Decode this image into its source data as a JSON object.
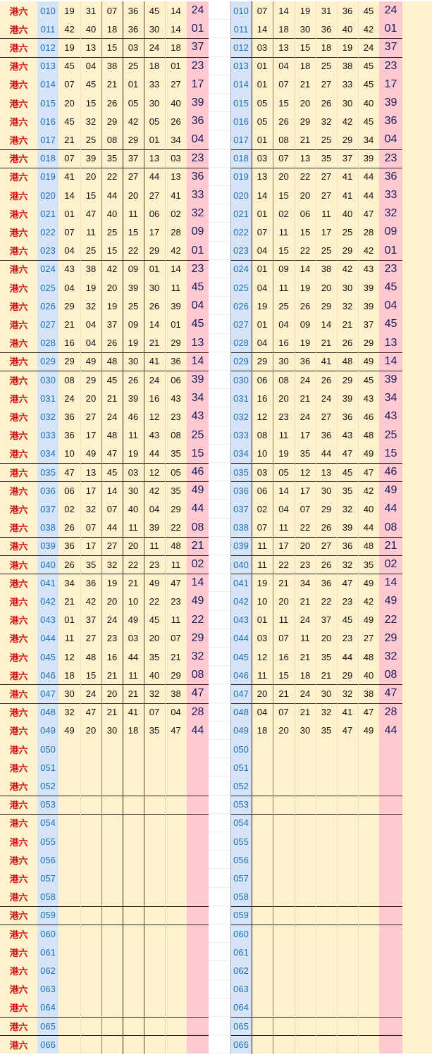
{
  "lottery_label": "港六",
  "colors": {
    "label": "#cc1111",
    "period": "#1e6fb8",
    "period_bg": "#d6e4f7",
    "cell_bg": "#fff2cc",
    "special_bg": "#ffc9d0",
    "special_text": "#1a1a5e"
  },
  "rows": [
    {
      "period": "010",
      "numbers": [
        "19",
        "31",
        "07",
        "36",
        "45",
        "14"
      ],
      "special": "24",
      "sorted": [
        "07",
        "14",
        "19",
        "31",
        "36",
        "45"
      ]
    },
    {
      "period": "011",
      "numbers": [
        "42",
        "40",
        "18",
        "36",
        "30",
        "14"
      ],
      "special": "01",
      "sorted": [
        "14",
        "18",
        "30",
        "36",
        "40",
        "42"
      ]
    },
    {
      "period": "012",
      "numbers": [
        "19",
        "13",
        "15",
        "03",
        "24",
        "18"
      ],
      "special": "37",
      "sorted": [
        "03",
        "13",
        "15",
        "18",
        "19",
        "24"
      ]
    },
    {
      "period": "013",
      "numbers": [
        "45",
        "04",
        "38",
        "25",
        "18",
        "01"
      ],
      "special": "23",
      "sorted": [
        "01",
        "04",
        "18",
        "25",
        "38",
        "45"
      ]
    },
    {
      "period": "014",
      "numbers": [
        "07",
        "45",
        "21",
        "01",
        "33",
        "27"
      ],
      "special": "17",
      "sorted": [
        "01",
        "07",
        "21",
        "27",
        "33",
        "45"
      ]
    },
    {
      "period": "015",
      "numbers": [
        "20",
        "15",
        "26",
        "05",
        "30",
        "40"
      ],
      "special": "39",
      "sorted": [
        "05",
        "15",
        "20",
        "26",
        "30",
        "40"
      ]
    },
    {
      "period": "016",
      "numbers": [
        "45",
        "32",
        "29",
        "42",
        "05",
        "26"
      ],
      "special": "36",
      "sorted": [
        "05",
        "26",
        "29",
        "32",
        "42",
        "45"
      ]
    },
    {
      "period": "017",
      "numbers": [
        "21",
        "25",
        "08",
        "29",
        "01",
        "34"
      ],
      "special": "04",
      "sorted": [
        "01",
        "08",
        "21",
        "25",
        "29",
        "34"
      ]
    },
    {
      "period": "018",
      "numbers": [
        "07",
        "39",
        "35",
        "37",
        "13",
        "03"
      ],
      "special": "23",
      "sorted": [
        "03",
        "07",
        "13",
        "35",
        "37",
        "39"
      ]
    },
    {
      "period": "019",
      "numbers": [
        "41",
        "20",
        "22",
        "27",
        "44",
        "13"
      ],
      "special": "36",
      "sorted": [
        "13",
        "20",
        "22",
        "27",
        "41",
        "44"
      ]
    },
    {
      "period": "020",
      "numbers": [
        "14",
        "15",
        "44",
        "20",
        "27",
        "41"
      ],
      "special": "33",
      "sorted": [
        "14",
        "15",
        "20",
        "27",
        "41",
        "44"
      ]
    },
    {
      "period": "021",
      "numbers": [
        "01",
        "47",
        "40",
        "11",
        "06",
        "02"
      ],
      "special": "32",
      "sorted": [
        "01",
        "02",
        "06",
        "11",
        "40",
        "47"
      ]
    },
    {
      "period": "022",
      "numbers": [
        "07",
        "11",
        "25",
        "15",
        "17",
        "28"
      ],
      "special": "09",
      "sorted": [
        "07",
        "11",
        "15",
        "17",
        "25",
        "28"
      ]
    },
    {
      "period": "023",
      "numbers": [
        "04",
        "25",
        "15",
        "22",
        "29",
        "42"
      ],
      "special": "01",
      "sorted": [
        "04",
        "15",
        "22",
        "25",
        "29",
        "42"
      ]
    },
    {
      "period": "024",
      "numbers": [
        "43",
        "38",
        "42",
        "09",
        "01",
        "14"
      ],
      "special": "23",
      "sorted": [
        "01",
        "09",
        "14",
        "38",
        "42",
        "43"
      ]
    },
    {
      "period": "025",
      "numbers": [
        "04",
        "19",
        "20",
        "39",
        "30",
        "11"
      ],
      "special": "45",
      "sorted": [
        "04",
        "11",
        "19",
        "20",
        "30",
        "39"
      ]
    },
    {
      "period": "026",
      "numbers": [
        "29",
        "32",
        "19",
        "25",
        "26",
        "39"
      ],
      "special": "04",
      "sorted": [
        "19",
        "25",
        "26",
        "29",
        "32",
        "39"
      ]
    },
    {
      "period": "027",
      "numbers": [
        "21",
        "04",
        "37",
        "09",
        "14",
        "01"
      ],
      "special": "45",
      "sorted": [
        "01",
        "04",
        "09",
        "14",
        "21",
        "37"
      ]
    },
    {
      "period": "028",
      "numbers": [
        "16",
        "04",
        "26",
        "19",
        "21",
        "29"
      ],
      "special": "13",
      "sorted": [
        "04",
        "16",
        "19",
        "21",
        "26",
        "29"
      ]
    },
    {
      "period": "029",
      "numbers": [
        "29",
        "49",
        "48",
        "30",
        "41",
        "36"
      ],
      "special": "14",
      "sorted": [
        "29",
        "30",
        "36",
        "41",
        "48",
        "49"
      ]
    },
    {
      "period": "030",
      "numbers": [
        "08",
        "29",
        "45",
        "26",
        "24",
        "06"
      ],
      "special": "39",
      "sorted": [
        "06",
        "08",
        "24",
        "26",
        "29",
        "45"
      ]
    },
    {
      "period": "031",
      "numbers": [
        "24",
        "20",
        "21",
        "39",
        "16",
        "43"
      ],
      "special": "34",
      "sorted": [
        "16",
        "20",
        "21",
        "24",
        "39",
        "43"
      ]
    },
    {
      "period": "032",
      "numbers": [
        "36",
        "27",
        "24",
        "46",
        "12",
        "23"
      ],
      "special": "43",
      "sorted": [
        "12",
        "23",
        "24",
        "27",
        "36",
        "46"
      ]
    },
    {
      "period": "033",
      "numbers": [
        "36",
        "17",
        "48",
        "11",
        "43",
        "08"
      ],
      "special": "25",
      "sorted": [
        "08",
        "11",
        "17",
        "36",
        "43",
        "48"
      ]
    },
    {
      "period": "034",
      "numbers": [
        "10",
        "49",
        "47",
        "19",
        "44",
        "35"
      ],
      "special": "15",
      "sorted": [
        "10",
        "19",
        "35",
        "44",
        "47",
        "49"
      ]
    },
    {
      "period": "035",
      "numbers": [
        "47",
        "13",
        "45",
        "03",
        "12",
        "05"
      ],
      "special": "46",
      "sorted": [
        "03",
        "05",
        "12",
        "13",
        "45",
        "47"
      ]
    },
    {
      "period": "036",
      "numbers": [
        "06",
        "17",
        "14",
        "30",
        "42",
        "35"
      ],
      "special": "49",
      "sorted": [
        "06",
        "14",
        "17",
        "30",
        "35",
        "42"
      ]
    },
    {
      "period": "037",
      "numbers": [
        "02",
        "32",
        "07",
        "40",
        "04",
        "29"
      ],
      "special": "44",
      "sorted": [
        "02",
        "04",
        "07",
        "29",
        "32",
        "40"
      ]
    },
    {
      "period": "038",
      "numbers": [
        "26",
        "07",
        "44",
        "11",
        "39",
        "22"
      ],
      "special": "08",
      "sorted": [
        "07",
        "11",
        "22",
        "26",
        "39",
        "44"
      ]
    },
    {
      "period": "039",
      "numbers": [
        "36",
        "17",
        "27",
        "20",
        "11",
        "48"
      ],
      "special": "21",
      "sorted": [
        "11",
        "17",
        "20",
        "27",
        "36",
        "48"
      ]
    },
    {
      "period": "040",
      "numbers": [
        "26",
        "35",
        "32",
        "22",
        "23",
        "11"
      ],
      "special": "02",
      "sorted": [
        "11",
        "22",
        "23",
        "26",
        "32",
        "35"
      ]
    },
    {
      "period": "041",
      "numbers": [
        "34",
        "36",
        "19",
        "21",
        "49",
        "47"
      ],
      "special": "14",
      "sorted": [
        "19",
        "21",
        "34",
        "36",
        "47",
        "49"
      ]
    },
    {
      "period": "042",
      "numbers": [
        "21",
        "42",
        "20",
        "10",
        "22",
        "23"
      ],
      "special": "49",
      "sorted": [
        "10",
        "20",
        "21",
        "22",
        "23",
        "42"
      ]
    },
    {
      "period": "043",
      "numbers": [
        "01",
        "37",
        "24",
        "49",
        "45",
        "11"
      ],
      "special": "22",
      "sorted": [
        "01",
        "11",
        "24",
        "37",
        "45",
        "49"
      ]
    },
    {
      "period": "044",
      "numbers": [
        "11",
        "27",
        "23",
        "03",
        "20",
        "07"
      ],
      "special": "29",
      "sorted": [
        "03",
        "07",
        "11",
        "20",
        "23",
        "27"
      ]
    },
    {
      "period": "045",
      "numbers": [
        "12",
        "48",
        "16",
        "44",
        "35",
        "21"
      ],
      "special": "32",
      "sorted": [
        "12",
        "16",
        "21",
        "35",
        "44",
        "48"
      ]
    },
    {
      "period": "046",
      "numbers": [
        "18",
        "15",
        "21",
        "11",
        "40",
        "29"
      ],
      "special": "08",
      "sorted": [
        "11",
        "15",
        "18",
        "21",
        "29",
        "40"
      ]
    },
    {
      "period": "047",
      "numbers": [
        "30",
        "24",
        "20",
        "21",
        "32",
        "38"
      ],
      "special": "47",
      "sorted": [
        "20",
        "21",
        "24",
        "30",
        "32",
        "38"
      ]
    },
    {
      "period": "048",
      "numbers": [
        "32",
        "47",
        "21",
        "41",
        "07",
        "04"
      ],
      "special": "28",
      "sorted": [
        "04",
        "07",
        "21",
        "32",
        "41",
        "47"
      ]
    },
    {
      "period": "049",
      "numbers": [
        "49",
        "20",
        "30",
        "18",
        "35",
        "47"
      ],
      "special": "44",
      "sorted": [
        "18",
        "20",
        "30",
        "35",
        "47",
        "49"
      ]
    },
    {
      "period": "050"
    },
    {
      "period": "051"
    },
    {
      "period": "052"
    },
    {
      "period": "053"
    },
    {
      "period": "054"
    },
    {
      "period": "055"
    },
    {
      "period": "056"
    },
    {
      "period": "057"
    },
    {
      "period": "058"
    },
    {
      "period": "059"
    },
    {
      "period": "060"
    },
    {
      "period": "061"
    },
    {
      "period": "062"
    },
    {
      "period": "063"
    },
    {
      "period": "064"
    },
    {
      "period": "065"
    },
    {
      "period": "066"
    }
  ]
}
